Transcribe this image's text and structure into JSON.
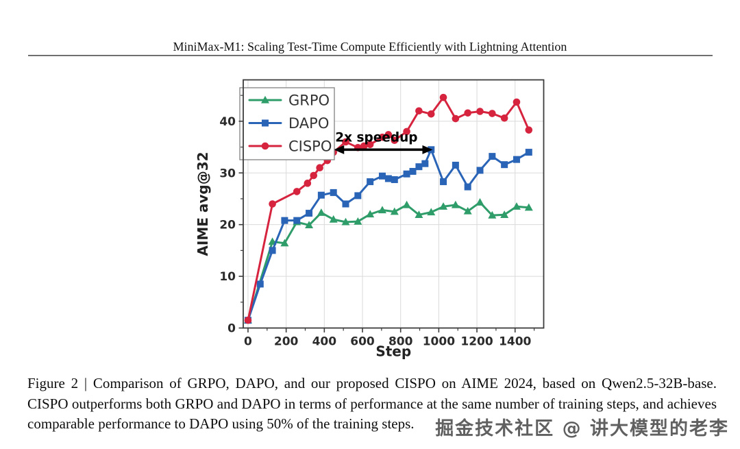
{
  "page": {
    "header_title": "MiniMax-M1: Scaling Test-Time Compute Efficiently with Lightning Attention",
    "caption": "Figure 2 | Comparison of GRPO, DAPO, and our proposed CISPO on AIME 2024, based on Qwen2.5-32B-base. CISPO outperforms both GRPO and DAPO in terms of performance at the same number of training steps, and achieves comparable performance to DAPO using 50% of the training steps.",
    "watermark": "掘金技术社区 @ 讲大模型的老李"
  },
  "chart_data": {
    "type": "line",
    "title": "",
    "xlabel": "Step",
    "ylabel": "AIME avg@32",
    "xlim": [
      -25,
      1550
    ],
    "ylim": [
      0,
      48
    ],
    "xticks": [
      0,
      200,
      400,
      600,
      800,
      1000,
      1200,
      1400
    ],
    "yticks": [
      0,
      10,
      20,
      30,
      40
    ],
    "grid": true,
    "legend_position": "upper-left",
    "series": [
      {
        "name": "GRPO",
        "color": "#2f9d69",
        "marker": "triangle",
        "x": [
          0,
          128,
          192,
          256,
          320,
          384,
          448,
          512,
          576,
          640,
          704,
          768,
          832,
          896,
          960,
          1024,
          1088,
          1152,
          1216,
          1280,
          1344,
          1408,
          1472
        ],
        "y": [
          1.5,
          16.7,
          16.4,
          20.5,
          19.9,
          22.3,
          21.0,
          20.5,
          20.6,
          22.0,
          22.8,
          22.5,
          23.8,
          21.9,
          22.4,
          23.5,
          23.8,
          22.6,
          24.3,
          21.8,
          21.9,
          23.5,
          23.3
        ]
      },
      {
        "name": "DAPO",
        "color": "#2a64b7",
        "marker": "square",
        "x": [
          0,
          64,
          128,
          192,
          256,
          320,
          384,
          448,
          512,
          576,
          640,
          704,
          736,
          768,
          832,
          864,
          896,
          928,
          960,
          1024,
          1088,
          1152,
          1216,
          1280,
          1344,
          1408,
          1472
        ],
        "y": [
          1.5,
          8.5,
          15.0,
          20.8,
          20.8,
          22.2,
          25.7,
          26.2,
          24.0,
          25.6,
          28.3,
          29.4,
          28.9,
          28.7,
          29.8,
          30.3,
          31.2,
          31.8,
          34.5,
          28.3,
          31.5,
          27.3,
          30.5,
          33.2,
          31.6,
          32.6,
          34.0
        ]
      },
      {
        "name": "CISPO",
        "color": "#d6243f",
        "marker": "circle",
        "x": [
          0,
          128,
          256,
          312,
          344,
          376,
          416,
          448,
          512,
          576,
          608,
          640,
          704,
          736,
          768,
          832,
          896,
          960,
          1024,
          1088,
          1152,
          1216,
          1280,
          1344,
          1408,
          1472
        ],
        "y": [
          1.5,
          24.0,
          26.4,
          28.0,
          29.5,
          31.0,
          32.4,
          34.0,
          36.0,
          34.9,
          35.2,
          35.5,
          36.9,
          37.4,
          36.3,
          38.0,
          42.0,
          41.4,
          44.6,
          40.5,
          41.6,
          41.9,
          41.5,
          40.6,
          43.7,
          38.3
        ]
      }
    ],
    "annotation": {
      "text": "2x speedup",
      "arrow_from_step": 450,
      "arrow_to_step": 968,
      "arrow_y": 34.5
    }
  }
}
